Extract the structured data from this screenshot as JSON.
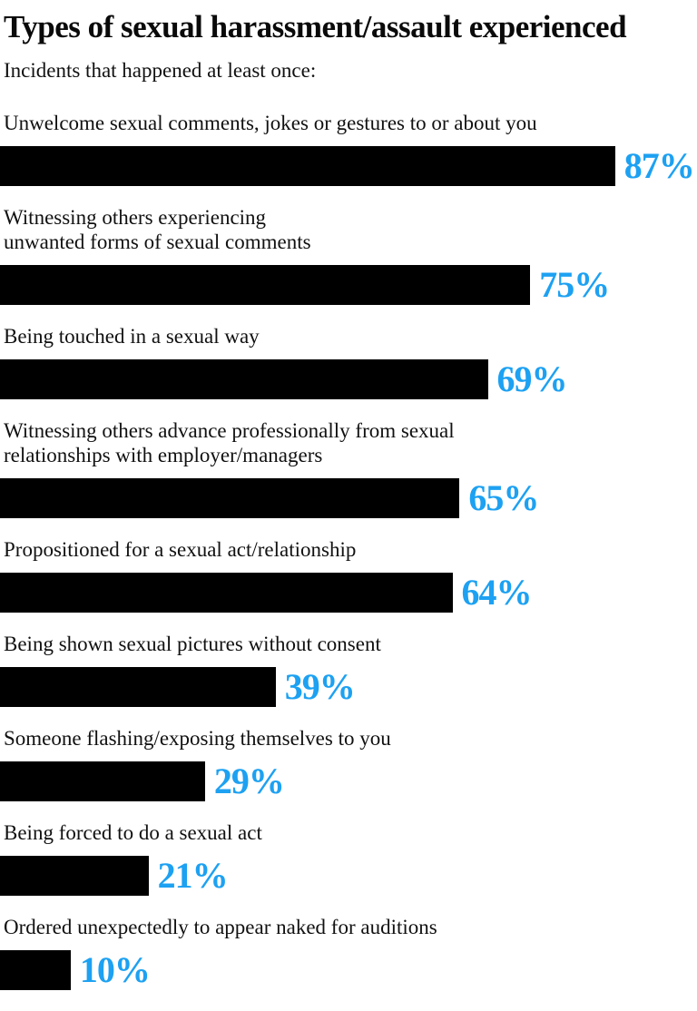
{
  "colors": {
    "background": "#ffffff",
    "bar": "#000000",
    "value_label": "#1da1f2",
    "text": "#111111"
  },
  "chart_data": {
    "type": "bar",
    "orientation": "horizontal",
    "title": "Types of sexual harassment/assault experienced",
    "subtitle": "Incidents that happened at least once:",
    "unit": "%",
    "xlim": [
      0,
      100
    ],
    "grid": false,
    "legend": false,
    "categories": [
      "Unwelcome sexual comments, jokes or gestures to or about you",
      "Witnessing others experiencing\nunwanted forms of sexual comments",
      "Being touched in a sexual way",
      "Witnessing others advance professionally from sexual\nrelationships with employer/managers",
      "Propositioned for a sexual act/relationship",
      "Being shown sexual pictures without consent",
      "Someone flashing/exposing themselves to you",
      "Being forced to do a sexual act",
      "Ordered unexpectedly to appear naked for auditions"
    ],
    "values": [
      87,
      75,
      69,
      65,
      64,
      39,
      29,
      21,
      10
    ],
    "value_labels": [
      "87%",
      "75%",
      "69%",
      "65%",
      "64%",
      "39%",
      "29%",
      "21%",
      "10%"
    ]
  }
}
